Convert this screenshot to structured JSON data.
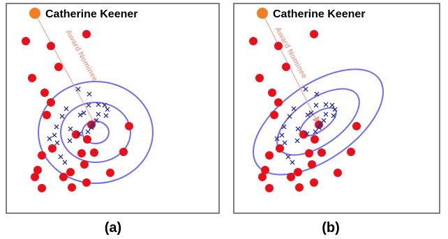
{
  "colors": {
    "frame": "#555555",
    "query_entity": "#f07f21",
    "negative_dot": "#e8101b",
    "positive_cross": "#2a2f8f",
    "ellipse": "#6c6ef0",
    "relation": "#e8a79b"
  },
  "panels": [
    {
      "caption": "(a)",
      "entity_label": "Catherine Keener",
      "relation_label": "Award Nominee",
      "ellipse_shape": "circular",
      "description_points": {
        "red_dots": [
          [
            28,
            54
          ],
          [
            37,
            107
          ],
          [
            75,
            91
          ],
          [
            115,
            44
          ],
          [
            64,
            61
          ],
          [
            55,
            128
          ],
          [
            64,
            142
          ],
          [
            58,
            160
          ],
          [
            66,
            208
          ],
          [
            51,
            218
          ],
          [
            45,
            239
          ],
          [
            41,
            249
          ],
          [
            51,
            265
          ],
          [
            82,
            249
          ],
          [
            92,
            242
          ],
          [
            115,
            257
          ],
          [
            112,
            231
          ],
          [
            108,
            215
          ],
          [
            126,
            214
          ],
          [
            116,
            195
          ],
          [
            100,
            188
          ],
          [
            122,
            174
          ],
          [
            168,
            213
          ],
          [
            176,
            176
          ],
          [
            149,
            243
          ],
          [
            94,
            264
          ]
        ],
        "blue_crosses": [
          [
            103,
            123
          ],
          [
            119,
            130
          ],
          [
            86,
            151
          ],
          [
            118,
            146
          ],
          [
            132,
            145
          ],
          [
            132,
            159
          ],
          [
            141,
            146
          ],
          [
            145,
            152
          ],
          [
            143,
            161
          ],
          [
            129,
            168
          ],
          [
            122,
            178
          ],
          [
            117,
            184
          ],
          [
            105,
            187
          ],
          [
            92,
            180
          ],
          [
            80,
            162
          ],
          [
            72,
            177
          ],
          [
            69,
            189
          ],
          [
            62,
            194
          ],
          [
            73,
            200
          ],
          [
            91,
            197
          ],
          [
            78,
            220
          ],
          [
            84,
            228
          ],
          [
            106,
            160
          ],
          [
            111,
            157
          ],
          [
            124,
            173
          ]
        ]
      }
    },
    {
      "caption": "(b)",
      "entity_label": "Catherine Keener",
      "relation_label": "Award Nominee",
      "ellipse_shape": "tilted",
      "description_points": {
        "red_dots": [
          [
            28,
            54
          ],
          [
            37,
            107
          ],
          [
            75,
            91
          ],
          [
            115,
            44
          ],
          [
            64,
            61
          ],
          [
            55,
            128
          ],
          [
            64,
            142
          ],
          [
            58,
            160
          ],
          [
            66,
            208
          ],
          [
            51,
            218
          ],
          [
            45,
            239
          ],
          [
            41,
            249
          ],
          [
            51,
            265
          ],
          [
            82,
            249
          ],
          [
            92,
            242
          ],
          [
            115,
            257
          ],
          [
            112,
            231
          ],
          [
            108,
            215
          ],
          [
            126,
            214
          ],
          [
            116,
            195
          ],
          [
            100,
            188
          ],
          [
            122,
            174
          ],
          [
            168,
            213
          ],
          [
            176,
            176
          ],
          [
            149,
            243
          ],
          [
            94,
            264
          ]
        ],
        "blue_crosses": [
          [
            103,
            123
          ],
          [
            119,
            130
          ],
          [
            86,
            151
          ],
          [
            118,
            146
          ],
          [
            132,
            145
          ],
          [
            132,
            159
          ],
          [
            141,
            146
          ],
          [
            145,
            152
          ],
          [
            143,
            161
          ],
          [
            129,
            168
          ],
          [
            122,
            178
          ],
          [
            117,
            184
          ],
          [
            105,
            187
          ],
          [
            92,
            180
          ],
          [
            80,
            162
          ],
          [
            72,
            177
          ],
          [
            69,
            189
          ],
          [
            62,
            194
          ],
          [
            73,
            200
          ],
          [
            91,
            197
          ],
          [
            78,
            220
          ],
          [
            84,
            228
          ],
          [
            106,
            160
          ],
          [
            111,
            157
          ],
          [
            124,
            173
          ]
        ]
      }
    }
  ]
}
